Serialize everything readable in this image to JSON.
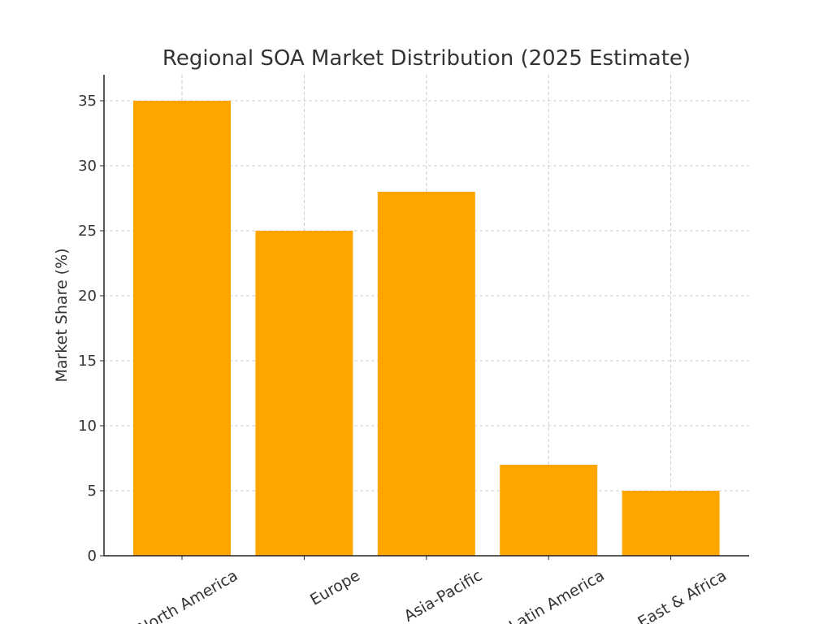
{
  "chart_data": {
    "type": "bar",
    "title": "Regional SOA Market Distribution (2025 Estimate)",
    "xlabel": "",
    "ylabel": "Market Share (%)",
    "categories": [
      "North America",
      "Europe",
      "Asia-Pacific",
      "Latin America",
      "East & Africa"
    ],
    "values": [
      35,
      25,
      28,
      7,
      5
    ],
    "ylim": [
      0,
      37
    ],
    "yticks": [
      0,
      5,
      10,
      15,
      20,
      25,
      30,
      35
    ],
    "grid": true,
    "bar_color": "#FFA500",
    "grid_color": "#cccccc"
  }
}
